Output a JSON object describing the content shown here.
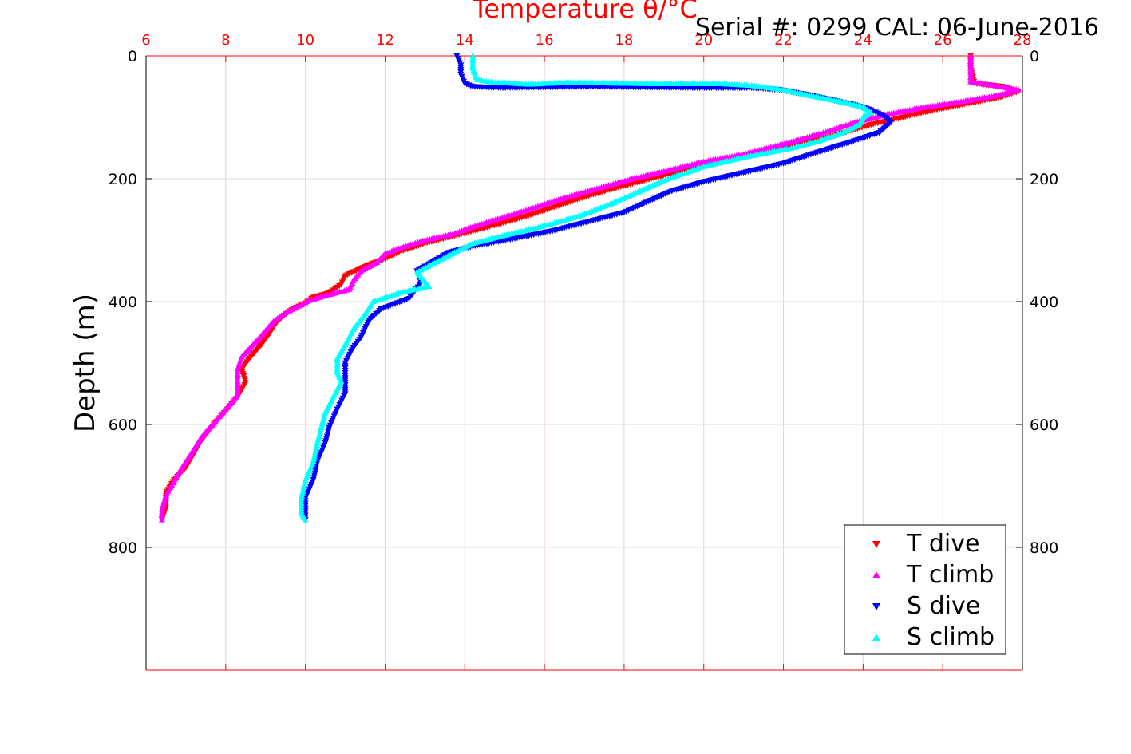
{
  "chart_data": {
    "type": "scatter",
    "title": "Temperature θ/°C",
    "subtitle": "Serial #: 0299 CAL: 06-June-2016",
    "xlabel": "",
    "ylabel": "Depth (m)",
    "xlim": [
      6,
      28
    ],
    "ylim": [
      0,
      1000
    ],
    "y_reversed": true,
    "x_ticks": [
      6,
      8,
      10,
      12,
      14,
      16,
      18,
      20,
      22,
      24,
      26,
      28
    ],
    "y_ticks": [
      0,
      200,
      400,
      600,
      800
    ],
    "grid": true,
    "legend_position": "bottom-right",
    "colors": {
      "axis": "#ff0000",
      "grid": "#dddddd",
      "frame": "#000000"
    },
    "series": [
      {
        "name": "T dive",
        "color": "#ff0000",
        "marker": "triangle-down",
        "points": [
          [
            26.7,
            0
          ],
          [
            26.7,
            20
          ],
          [
            26.8,
            45
          ],
          [
            27.5,
            50
          ],
          [
            27.9,
            58
          ],
          [
            27.4,
            68
          ],
          [
            26.6,
            78
          ],
          [
            25.8,
            88
          ],
          [
            25.0,
            100
          ],
          [
            24.2,
            112
          ],
          [
            23.0,
            135
          ],
          [
            22.0,
            150
          ],
          [
            21.0,
            165
          ],
          [
            20.0,
            180
          ],
          [
            18.8,
            198
          ],
          [
            17.8,
            215
          ],
          [
            17.0,
            230
          ],
          [
            16.3,
            245
          ],
          [
            15.6,
            260
          ],
          [
            14.8,
            275
          ],
          [
            13.8,
            292
          ],
          [
            13.0,
            305
          ],
          [
            12.4,
            318
          ],
          [
            12.0,
            330
          ],
          [
            11.6,
            340
          ],
          [
            11.0,
            358
          ],
          [
            10.9,
            372
          ],
          [
            10.6,
            386
          ],
          [
            10.2,
            393
          ],
          [
            10.0,
            402
          ],
          [
            9.6,
            415
          ],
          [
            9.3,
            432
          ],
          [
            9.1,
            452
          ],
          [
            8.9,
            470
          ],
          [
            8.6,
            492
          ],
          [
            8.4,
            510
          ],
          [
            8.5,
            532
          ],
          [
            8.3,
            555
          ],
          [
            8.0,
            578
          ],
          [
            7.7,
            600
          ],
          [
            7.4,
            625
          ],
          [
            7.2,
            648
          ],
          [
            7.0,
            670
          ],
          [
            6.7,
            690
          ],
          [
            6.5,
            712
          ],
          [
            6.5,
            735
          ],
          [
            6.4,
            755
          ]
        ]
      },
      {
        "name": "T climb",
        "color": "#ff00ff",
        "marker": "triangle-up",
        "points": [
          [
            26.7,
            0
          ],
          [
            26.7,
            20
          ],
          [
            26.7,
            42
          ],
          [
            27.3,
            48
          ],
          [
            27.9,
            55
          ],
          [
            27.4,
            64
          ],
          [
            26.4,
            75
          ],
          [
            25.4,
            85
          ],
          [
            24.6,
            95
          ],
          [
            23.8,
            108
          ],
          [
            23.0,
            125
          ],
          [
            22.2,
            140
          ],
          [
            21.0,
            160
          ],
          [
            20.0,
            172
          ],
          [
            19.0,
            188
          ],
          [
            18.2,
            200
          ],
          [
            17.2,
            218
          ],
          [
            16.3,
            235
          ],
          [
            15.6,
            250
          ],
          [
            15.0,
            262
          ],
          [
            14.2,
            278
          ],
          [
            13.7,
            290
          ],
          [
            13.0,
            300
          ],
          [
            12.4,
            312
          ],
          [
            12.0,
            322
          ],
          [
            11.8,
            336
          ],
          [
            11.4,
            350
          ],
          [
            11.2,
            366
          ],
          [
            11.1,
            380
          ],
          [
            10.5,
            390
          ],
          [
            10.1,
            398
          ],
          [
            9.9,
            405
          ],
          [
            9.5,
            418
          ],
          [
            9.2,
            432
          ],
          [
            8.8,
            462
          ],
          [
            8.6,
            476
          ],
          [
            8.4,
            490
          ],
          [
            8.3,
            510
          ],
          [
            8.3,
            530
          ],
          [
            8.3,
            552
          ],
          [
            8.0,
            575
          ],
          [
            7.7,
            598
          ],
          [
            7.4,
            620
          ],
          [
            7.1,
            650
          ],
          [
            6.9,
            670
          ],
          [
            6.7,
            692
          ],
          [
            6.5,
            715
          ],
          [
            6.4,
            738
          ],
          [
            6.4,
            755
          ]
        ]
      },
      {
        "name": "S dive",
        "color": "#0000ff",
        "marker": "triangle-down",
        "points": [
          [
            13.8,
            0
          ],
          [
            13.9,
            15
          ],
          [
            13.9,
            30
          ],
          [
            14.0,
            45
          ],
          [
            14.2,
            50
          ],
          [
            14.9,
            52
          ],
          [
            17.1,
            50
          ],
          [
            19.9,
            52
          ],
          [
            21.2,
            52
          ],
          [
            21.9,
            55
          ],
          [
            22.5,
            62
          ],
          [
            23.1,
            70
          ],
          [
            23.8,
            80
          ],
          [
            24.2,
            88
          ],
          [
            24.5,
            97
          ],
          [
            24.7,
            108
          ],
          [
            24.4,
            125
          ],
          [
            23.7,
            140
          ],
          [
            22.8,
            158
          ],
          [
            22.0,
            175
          ],
          [
            21.0,
            190
          ],
          [
            20.0,
            205
          ],
          [
            19.2,
            220
          ],
          [
            18.5,
            240
          ],
          [
            18.0,
            255
          ],
          [
            17.1,
            270
          ],
          [
            16.2,
            285
          ],
          [
            15.2,
            298
          ],
          [
            14.2,
            310
          ],
          [
            13.6,
            320
          ],
          [
            13.2,
            335
          ],
          [
            12.8,
            350
          ],
          [
            12.9,
            370
          ],
          [
            12.6,
            395
          ],
          [
            11.9,
            412
          ],
          [
            11.6,
            430
          ],
          [
            11.4,
            458
          ],
          [
            11.2,
            475
          ],
          [
            11.0,
            500
          ],
          [
            11.0,
            528
          ],
          [
            11.0,
            550
          ],
          [
            10.8,
            575
          ],
          [
            10.6,
            605
          ],
          [
            10.5,
            630
          ],
          [
            10.3,
            660
          ],
          [
            10.2,
            690
          ],
          [
            10.0,
            720
          ],
          [
            10.0,
            740
          ],
          [
            10.0,
            755
          ]
        ]
      },
      {
        "name": "S climb",
        "color": "#00ffff",
        "marker": "triangle-up",
        "points": [
          [
            14.2,
            0
          ],
          [
            14.2,
            20
          ],
          [
            14.3,
            38
          ],
          [
            14.6,
            42
          ],
          [
            15.6,
            46
          ],
          [
            16.6,
            43
          ],
          [
            18.6,
            45
          ],
          [
            19.6,
            45
          ],
          [
            20.4,
            45
          ],
          [
            21.2,
            48
          ],
          [
            22.0,
            55
          ],
          [
            22.7,
            65
          ],
          [
            23.5,
            75
          ],
          [
            24.0,
            83
          ],
          [
            24.2,
            92
          ],
          [
            24.0,
            100
          ],
          [
            23.9,
            112
          ],
          [
            23.5,
            125
          ],
          [
            22.8,
            140
          ],
          [
            22.2,
            150
          ],
          [
            21.0,
            165
          ],
          [
            20.0,
            180
          ],
          [
            19.1,
            200
          ],
          [
            18.4,
            220
          ],
          [
            17.7,
            240
          ],
          [
            16.9,
            260
          ],
          [
            15.9,
            278
          ],
          [
            15.0,
            292
          ],
          [
            14.2,
            305
          ],
          [
            13.8,
            318
          ],
          [
            13.3,
            335
          ],
          [
            12.8,
            352
          ],
          [
            13.1,
            375
          ],
          [
            12.4,
            385
          ],
          [
            11.7,
            400
          ],
          [
            11.5,
            420
          ],
          [
            11.2,
            445
          ],
          [
            11.0,
            470
          ],
          [
            10.8,
            492
          ],
          [
            10.8,
            515
          ],
          [
            10.9,
            530
          ],
          [
            10.7,
            555
          ],
          [
            10.5,
            580
          ],
          [
            10.4,
            605
          ],
          [
            10.3,
            630
          ],
          [
            10.2,
            660
          ],
          [
            10.0,
            690
          ],
          [
            9.9,
            720
          ],
          [
            9.9,
            745
          ],
          [
            10.0,
            755
          ]
        ]
      }
    ]
  }
}
